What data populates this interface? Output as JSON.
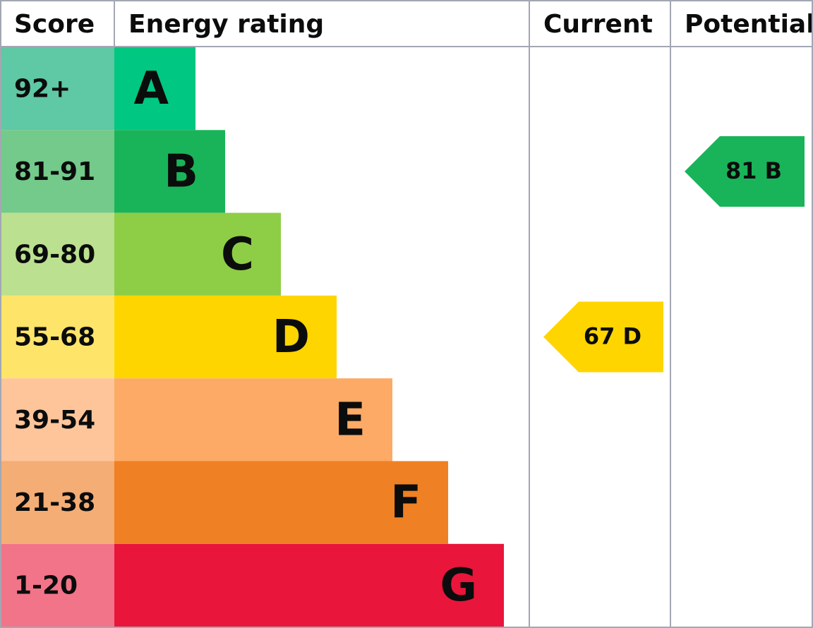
{
  "header": {
    "score": "Score",
    "rating": "Energy rating",
    "current": "Current",
    "potential": "Potential"
  },
  "rows": [
    {
      "score": "92+",
      "band": "A"
    },
    {
      "score": "81-91",
      "band": "B"
    },
    {
      "score": "69-80",
      "band": "C"
    },
    {
      "score": "55-68",
      "band": "D"
    },
    {
      "score": "39-54",
      "band": "E"
    },
    {
      "score": "21-38",
      "band": "F"
    },
    {
      "score": "1-20",
      "band": "G"
    }
  ],
  "current": {
    "score": 67,
    "band": "D"
  },
  "potential": {
    "score": 81,
    "band": "B"
  }
}
